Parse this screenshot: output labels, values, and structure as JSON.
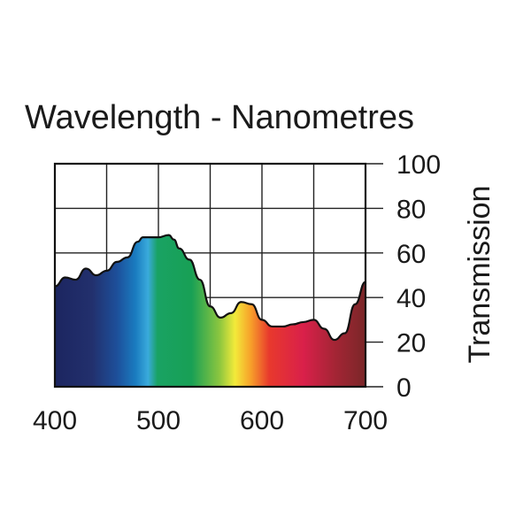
{
  "chart_data": {
    "type": "area",
    "title": "Wavelength - Nanometres",
    "xlabel": "",
    "ylabel": "Transmission",
    "xlim": [
      400,
      700
    ],
    "ylim": [
      0,
      100
    ],
    "x_ticks": [
      400,
      500,
      600,
      700
    ],
    "y_ticks": [
      0,
      20,
      40,
      60,
      80,
      100
    ],
    "grid": true,
    "fill": "visible spectrum",
    "series": [
      {
        "x": [
          400,
          410,
          420,
          430,
          440,
          450,
          460,
          470,
          480,
          485,
          490,
          500,
          510,
          515,
          520,
          530,
          540,
          550,
          560,
          570,
          580,
          590,
          600,
          610,
          620,
          630,
          640,
          650,
          660,
          670,
          680,
          690,
          700
        ],
        "values": [
          45,
          49,
          48,
          53,
          50,
          52,
          56,
          58,
          65,
          67,
          67,
          67,
          68,
          66,
          62,
          57,
          48,
          36,
          31,
          33,
          38,
          37,
          30,
          27,
          27,
          28,
          29,
          30,
          26,
          21,
          24,
          37,
          47
        ]
      }
    ]
  }
}
